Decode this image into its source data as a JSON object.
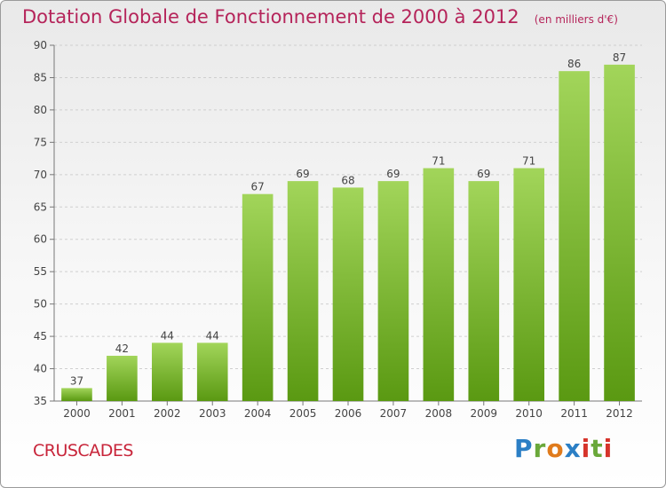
{
  "title": {
    "main": "Dotation Globale de Fonctionnement de 2000 à 2012",
    "unit": "(en milliers d'€)"
  },
  "commune_name": "CRUSCADES",
  "logo": {
    "letters": [
      "P",
      "r",
      "o",
      "x",
      "i",
      "t",
      "i"
    ],
    "colors": [
      "#2b7fc5",
      "#6aa83a",
      "#e07b1c",
      "#2b7fc5",
      "#d6342b",
      "#6aa83a",
      "#d6342b"
    ]
  },
  "colors": {
    "bar_top": "#a2d55a",
    "bar_bottom": "#5a9912",
    "title": "#b5245a",
    "commune": "#c8253a"
  },
  "chart_data": {
    "type": "bar",
    "title": "Dotation Globale de Fonctionnement de 2000 à 2012",
    "subtitle": "(en milliers d'€)",
    "categories": [
      "2000",
      "2001",
      "2002",
      "2003",
      "2004",
      "2005",
      "2006",
      "2007",
      "2008",
      "2009",
      "2010",
      "2011",
      "2012"
    ],
    "values": [
      37,
      42,
      44,
      44,
      67,
      69,
      68,
      69,
      71,
      69,
      71,
      86,
      87
    ],
    "ylim": [
      35,
      90
    ],
    "yticks": [
      35,
      40,
      45,
      50,
      55,
      60,
      65,
      70,
      75,
      80,
      85,
      90
    ],
    "grid": true,
    "xlabel": "",
    "ylabel": ""
  }
}
